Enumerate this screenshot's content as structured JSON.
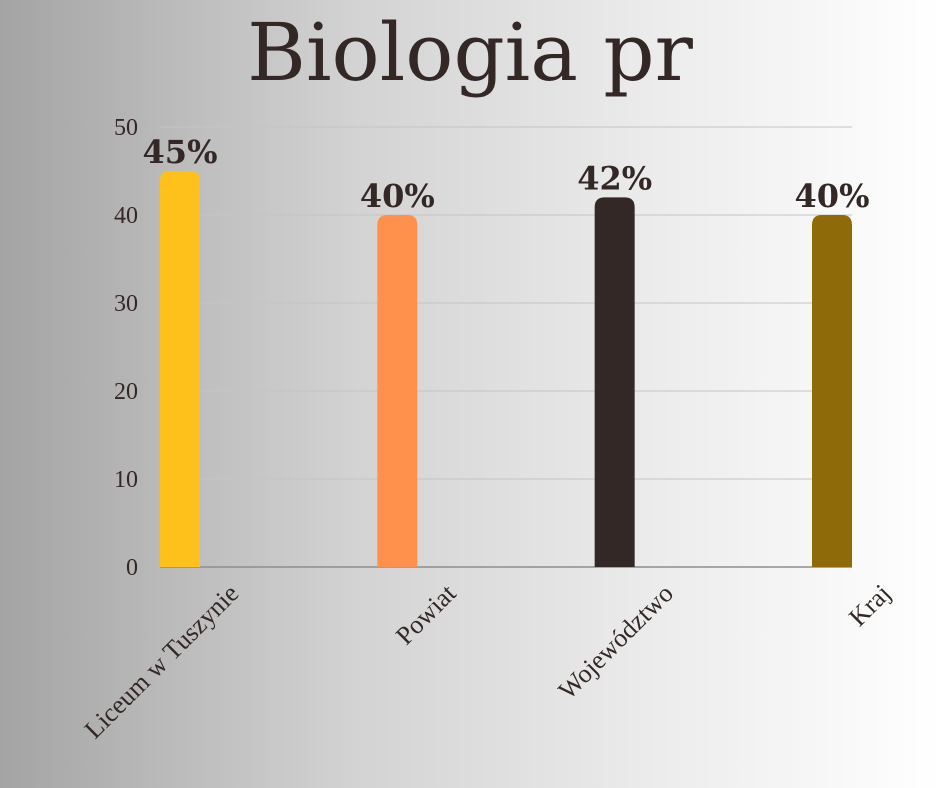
{
  "title": "Biologia pr",
  "chart_data": {
    "type": "bar",
    "title": "Biologia pr",
    "categories": [
      "Liceum w Tuszynie",
      "Powiat",
      "Województwo",
      "Kraj"
    ],
    "values": [
      45,
      40,
      42,
      40
    ],
    "data_labels": [
      "45%",
      "40%",
      "42%",
      "40%"
    ],
    "colors": [
      "#fec11b",
      "#ff914d",
      "#332826",
      "#8f6a09"
    ],
    "xlabel": "",
    "ylabel": "",
    "ylim": [
      0,
      50
    ],
    "yticks": [
      0,
      10,
      20,
      30,
      40,
      50
    ],
    "grid": true,
    "legend": "none"
  }
}
